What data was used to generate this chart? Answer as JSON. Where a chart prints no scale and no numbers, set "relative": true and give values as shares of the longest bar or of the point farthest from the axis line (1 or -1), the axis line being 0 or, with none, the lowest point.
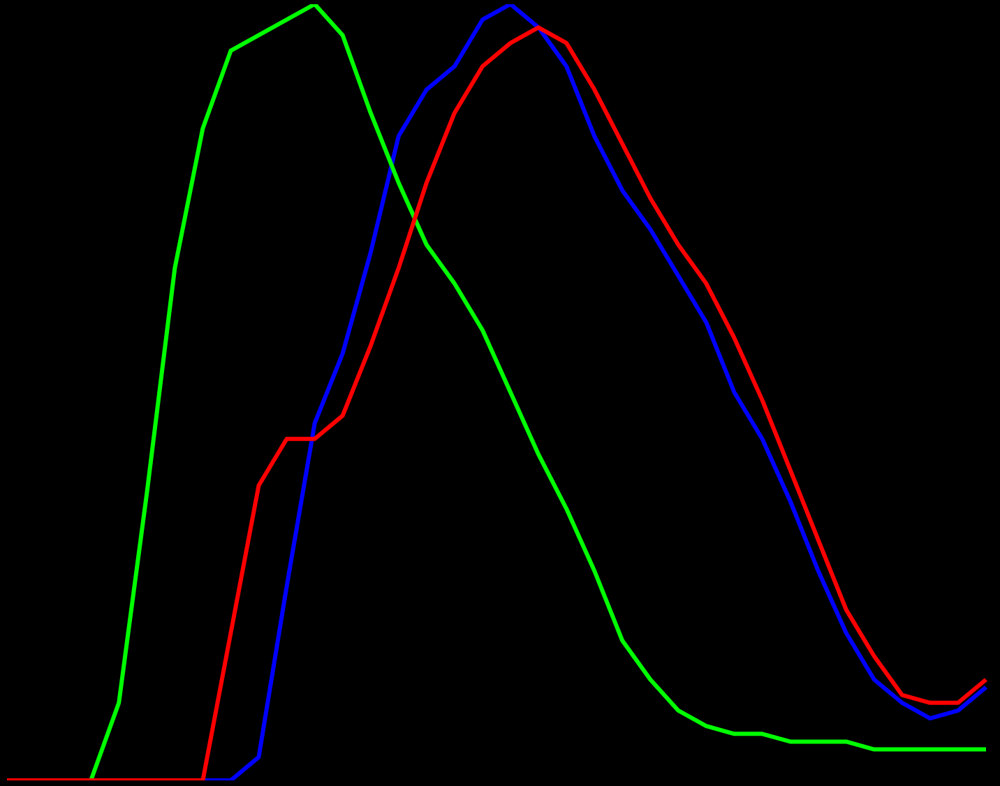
{
  "chart_data": {
    "type": "line",
    "relative": true,
    "legend": false,
    "marker": "none",
    "line_style": "solid",
    "categories": [
      null,
      null,
      null,
      null,
      null,
      null,
      null,
      null,
      null,
      null,
      null,
      null,
      null,
      null,
      null,
      null,
      null,
      null,
      null,
      null,
      null,
      null,
      null,
      null,
      null,
      null,
      null,
      null,
      null,
      null,
      null,
      null,
      null,
      null,
      null,
      null
    ],
    "series": [
      {
        "color": "#ff0000",
        "values": [
          0,
          0,
          0,
          0,
          0,
          0,
          0,
          0,
          0.19,
          0.38,
          0.44,
          0.44,
          0.47,
          0.56,
          0.66,
          0.77,
          0.86,
          0.92,
          0.95,
          0.97,
          0.95,
          0.89,
          0.82,
          0.75,
          0.69,
          0.64,
          0.57,
          0.49,
          0.4,
          0.31,
          0.22,
          0.16,
          0.11,
          0.1,
          0.1,
          0.13
        ]
      },
      {
        "color": "#00ff00",
        "values": [
          null,
          null,
          null,
          0,
          0.1,
          0.37,
          0.66,
          0.84,
          0.94,
          0.96,
          0.98,
          1.0,
          0.96,
          0.86,
          0.77,
          0.69,
          0.64,
          0.58,
          0.5,
          0.42,
          0.35,
          0.27,
          0.18,
          0.13,
          0.09,
          0.07,
          0.06,
          0.06,
          0.05,
          0.05,
          0.05,
          0.04,
          0.04,
          0.04,
          0.04,
          0.04
        ]
      },
      {
        "color": "#0000ff",
        "values": [
          null,
          null,
          null,
          null,
          null,
          null,
          null,
          0,
          0,
          0.03,
          0.25,
          0.46,
          0.55,
          0.68,
          0.83,
          0.89,
          0.92,
          0.98,
          1.0,
          0.97,
          0.92,
          0.83,
          0.76,
          0.71,
          0.65,
          0.59,
          0.5,
          0.44,
          0.36,
          0.27,
          0.19,
          0.13,
          0.1,
          0.08,
          0.09,
          0.12
        ]
      }
    ]
  }
}
